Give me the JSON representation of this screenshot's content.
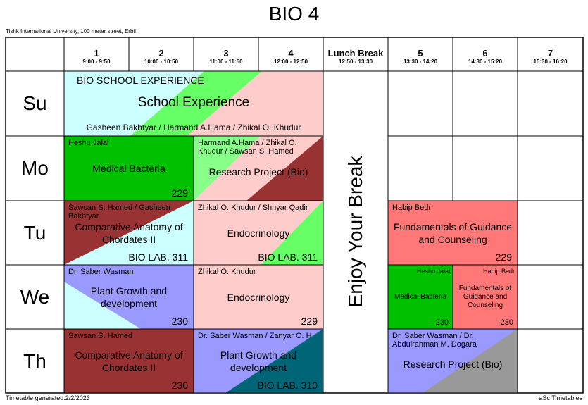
{
  "header": {
    "title": "BIO 4",
    "subtitle": "Tishk International University, 100 meter street, Erbil"
  },
  "columns": [
    {
      "number": "1",
      "time": "9:00 - 9:50"
    },
    {
      "number": "2",
      "time": "10:00 - 10:50"
    },
    {
      "number": "3",
      "time": "11:00 - 11:50"
    },
    {
      "number": "4",
      "time": "12:00 - 12:50"
    },
    {
      "number": "Lunch Break",
      "time": "12:50 - 13:30"
    },
    {
      "number": "5",
      "time": "13:30 - 14:20"
    },
    {
      "number": "6",
      "time": "14:30 - 15:20"
    },
    {
      "number": "7",
      "time": "15:30 - 16:20"
    }
  ],
  "days": [
    "Su",
    "Mo",
    "Tu",
    "We",
    "Th"
  ],
  "lunch": "Enjoy Your Break",
  "events": [
    {
      "group": "BIO SCHOOL EXPERIENCE",
      "subject": "School Experience",
      "teacher": "Gasheen Bakhtyar / Harmand A.Hama / Zhikal O. Khudur"
    },
    {
      "teacher": "Heshu Jalal",
      "subject": "Medical Bacteria",
      "room": "229"
    },
    {
      "teacher": "Harmand A.Hama / Zhikal O. Khudur / Sawsan S. Hamed",
      "subject": "Research Project (Bio)"
    },
    {
      "teacher": "Sawsan S. Hamed / Gasheen Bakhtyar",
      "subject": "Comparative Anatomy of Chordates II",
      "room": "BIO LAB. 311"
    },
    {
      "teacher": "Zhikal O. Khudur / Shnyar Qadir",
      "subject": "Endocrinology",
      "room": "BIO LAB. 311"
    },
    {
      "teacher": "Habip  Bedr",
      "subject": "Fundamentals of Guidance and Counseling",
      "room": "229"
    },
    {
      "teacher": "Dr. Saber Wasman",
      "subject": "Plant Growth and development",
      "room": "230"
    },
    {
      "teacher": "Zhikal O. Khudur",
      "subject": "Endocrinology",
      "room": "229"
    },
    {
      "teacher": "Heshu Jalal",
      "subject": "Medical Bacteria",
      "room": "230"
    },
    {
      "teacher": "Habip  Bedr",
      "subject": "Fundamentals of Guidance and Counseling",
      "room": "230"
    },
    {
      "teacher": "Sawsan S. Hamed",
      "subject": "Comparative Anatomy of Chordates II",
      "room": "230"
    },
    {
      "teacher": "Dr. Saber Wasman / Zanyar O. H",
      "subject": "Plant Growth and development",
      "room": "BIO LAB. 310"
    },
    {
      "teacher": "Dr. Saber Wasman / Dr. Abdulrahman M. Dogara",
      "subject": "Research Project (Bio)"
    }
  ],
  "footer": {
    "generated": "Timetable generated:2/2/2023",
    "brand": "aSc Timetables"
  }
}
